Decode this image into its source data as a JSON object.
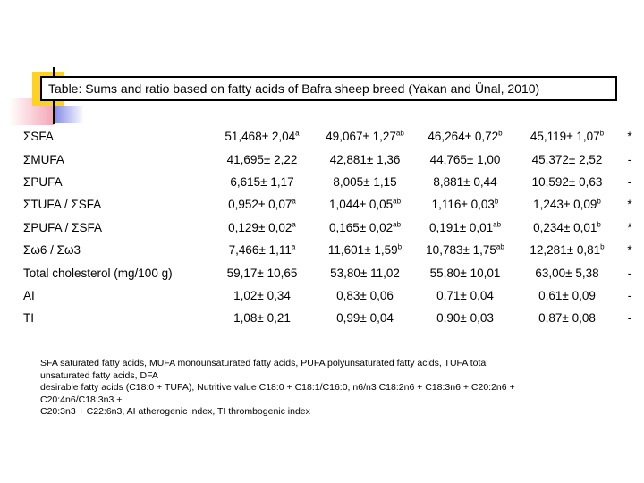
{
  "title": "Table: Sums and ratio based on fatty acids of Bafra sheep breed (Yakan and Ünal, 2010)",
  "rows": [
    {
      "label": "ΣSFA",
      "cells": [
        {
          "v": "51,468± 2,04",
          "s": "a"
        },
        {
          "v": "49,067± 1,27",
          "s": "ab"
        },
        {
          "v": "46,264± 0,72",
          "s": "b"
        },
        {
          "v": "45,119± 1,07",
          "s": "b"
        }
      ],
      "sig": "*"
    },
    {
      "label": "ΣMUFA",
      "cells": [
        {
          "v": "41,695± 2,22",
          "s": ""
        },
        {
          "v": "42,881± 1,36",
          "s": ""
        },
        {
          "v": "44,765± 1,00",
          "s": ""
        },
        {
          "v": "45,372± 2,52",
          "s": ""
        }
      ],
      "sig": "-"
    },
    {
      "label": "ΣPUFA",
      "cells": [
        {
          "v": "6,615± 1,17",
          "s": ""
        },
        {
          "v": "8,005± 1,15",
          "s": ""
        },
        {
          "v": "8,881± 0,44",
          "s": ""
        },
        {
          "v": "10,592± 0,63",
          "s": ""
        }
      ],
      "sig": "-"
    },
    {
      "label": "ΣTUFA / ΣSFA",
      "cells": [
        {
          "v": "0,952± 0,07",
          "s": "a"
        },
        {
          "v": "1,044± 0,05",
          "s": "ab"
        },
        {
          "v": "1,116± 0,03",
          "s": "b"
        },
        {
          "v": "1,243± 0,09",
          "s": "b"
        }
      ],
      "sig": "*"
    },
    {
      "label": "ΣPUFA / ΣSFA",
      "cells": [
        {
          "v": "0,129± 0,02",
          "s": "a"
        },
        {
          "v": "0,165± 0,02",
          "s": "ab"
        },
        {
          "v": "0,191± 0,01",
          "s": "ab"
        },
        {
          "v": "0,234± 0,01",
          "s": "b"
        }
      ],
      "sig": "*"
    },
    {
      "label": "Σω6 / Σω3",
      "cells": [
        {
          "v": "7,466± 1,11",
          "s": "a"
        },
        {
          "v": "11,601± 1,59",
          "s": "b"
        },
        {
          "v": "10,783± 1,75",
          "s": "ab"
        },
        {
          "v": "12,281± 0,81",
          "s": "b"
        }
      ],
      "sig": "*"
    },
    {
      "label": "Total cholesterol (mg/100 g)",
      "cells": [
        {
          "v": "59,17± 10,65",
          "s": ""
        },
        {
          "v": "53,80± 11,02",
          "s": ""
        },
        {
          "v": "55,80± 10,01",
          "s": ""
        },
        {
          "v": "63,00± 5,38",
          "s": ""
        }
      ],
      "sig": "-"
    },
    {
      "label": "AI",
      "cells": [
        {
          "v": "1,02± 0,34",
          "s": ""
        },
        {
          "v": "0,83± 0,06",
          "s": ""
        },
        {
          "v": "0,71± 0,04",
          "s": ""
        },
        {
          "v": "0,61± 0,09",
          "s": ""
        }
      ],
      "sig": "-"
    },
    {
      "label": "TI",
      "cells": [
        {
          "v": "1,08± 0,21",
          "s": ""
        },
        {
          "v": "0,99± 0,04",
          "s": ""
        },
        {
          "v": "0,90± 0,03",
          "s": ""
        },
        {
          "v": "0,87± 0,08",
          "s": ""
        }
      ],
      "sig": "-"
    }
  ],
  "footnote": [
    "SFA saturated fatty acids, MUFA monounsaturated fatty acids, PUFA polyunsaturated fatty acids, TUFA total",
    "unsaturated fatty acids, DFA",
    "desirable fatty acids (C18:0 + TUFA), Nutritive value C18:0 + C18:1/C16:0, n6/n3 C18:2n6 + C18:3n6 + C20:2n6 +",
    "C20:4n6/C18:3n3 +",
    "C20:3n3 + C22:6n3, AI atherogenic index, TI thrombogenic index"
  ]
}
